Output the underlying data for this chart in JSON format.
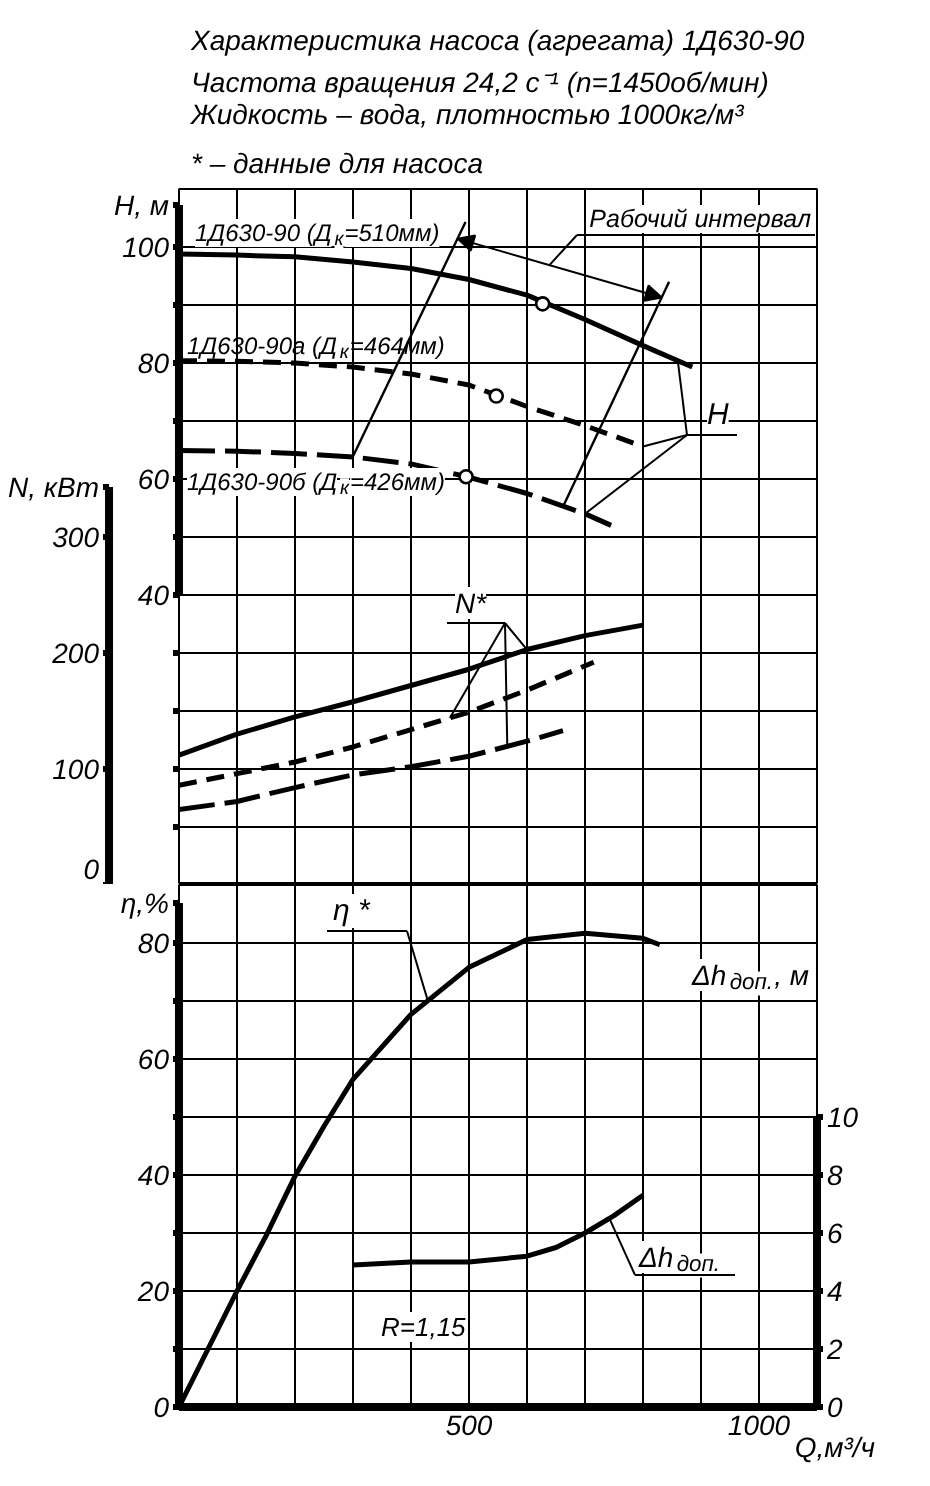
{
  "chart_data": [
    {
      "type": "line",
      "title": "Характеристика насоса (агрегата) 1Д630-90",
      "subtitle": "Частота вращения 24,2 с⁻¹ (n=1450об/мин)\nЖидкость – вода, плотностью 1000кг/м³",
      "annotations": [
        "* – данные для насоса",
        "Рабочий интервал",
        {
          "text": "H",
          "x": 860,
          "y": 80.4
        },
        {
          "text": "N*",
          "x": 600,
          "y": 30.6
        }
      ],
      "ylabel": "H, м",
      "y2label": "N, кВт",
      "xlim": [
        0,
        1100
      ],
      "xticks": [
        {
          "value": 0,
          "label": null
        },
        {
          "value": 100,
          "label": null
        },
        {
          "value": 200,
          "label": null
        },
        {
          "value": 300,
          "label": null
        },
        {
          "value": 400,
          "label": null
        },
        {
          "value": 500,
          "label": null
        },
        {
          "value": 600,
          "label": null
        },
        {
          "value": 700,
          "label": null
        },
        {
          "value": 800,
          "label": null
        },
        {
          "value": 900,
          "label": null
        },
        {
          "value": 1000,
          "label": null
        },
        {
          "value": 1100,
          "label": null
        }
      ],
      "tick_labels": "y",
      "ylim": [
        -10,
        110
      ],
      "yticks": [
        {
          "value": 0,
          "label": null
        },
        {
          "value": 10,
          "label": null
        },
        {
          "value": 20,
          "label": null
        },
        {
          "value": 30,
          "label": null
        },
        40,
        {
          "value": 50,
          "label": null
        },
        60,
        {
          "value": 70,
          "label": null
        },
        80,
        {
          "value": 90,
          "label": null
        },
        100
      ],
      "y2lim": [
        0,
        600
      ],
      "y2ticks": [
        0,
        100,
        200,
        300
      ],
      "grid": true,
      "series": [
        {
          "name": "1Д630-90 (Д$_{к}$=510мм)",
          "color": "#000000",
          "line_style": "solid",
          "x": [
            0,
            100,
            200,
            300,
            400,
            500,
            600,
            700,
            800,
            885
          ],
          "values": [
            98.8,
            98.6,
            98.3,
            97.4,
            96.3,
            94.4,
            91.7,
            87.5,
            83.0,
            79.3
          ]
        },
        {
          "name": "1Д630-90а (Д$_{к}$=464мм)",
          "color": "#000000",
          "line_style": "dashed",
          "x": [
            0,
            100,
            200,
            300,
            400,
            500,
            600,
            700,
            800
          ],
          "values": [
            80.4,
            80.3,
            80.0,
            79.3,
            78.1,
            76.2,
            72.5,
            69.2,
            65.6
          ]
        },
        {
          "name": "1Д630-90б (Д$_{к}$=426мм)",
          "color": "#000000",
          "line_style": "dashed",
          "x": [
            0,
            100,
            200,
            300,
            400,
            500,
            600,
            700,
            745
          ],
          "values": [
            64.9,
            64.8,
            64.4,
            63.8,
            62.6,
            60.3,
            57.5,
            54.0,
            52.0
          ]
        },
        {
          "type": "scatter",
          "color": "#000000",
          "marker": "circle",
          "x": [
            627,
            547,
            495
          ],
          "values": [
            90.2,
            74.3,
            60.4
          ]
        },
        {
          "color": "#000000",
          "line_style": "solid",
          "x": [
            494,
            298
          ],
          "values": [
            104.3,
            63.5
          ]
        },
        {
          "color": "#000000",
          "line_style": "solid",
          "x": [
            845,
            662
          ],
          "values": [
            94.0,
            55.2
          ]
        },
        {
          "color": "#000000",
          "axis": "y2",
          "line_style": "solid",
          "x": [
            0,
            100,
            200,
            300,
            400,
            500,
            600,
            700,
            800
          ],
          "values": [
            112,
            130,
            145,
            158,
            172,
            186,
            203,
            215,
            224
          ]
        },
        {
          "color": "#000000",
          "axis": "y2",
          "line_style": "dashed",
          "x": [
            0,
            100,
            200,
            300,
            400,
            500,
            600,
            715
          ],
          "values": [
            86,
            96,
            106,
            119,
            134,
            149,
            168,
            192
          ]
        },
        {
          "color": "#000000",
          "axis": "y2",
          "line_style": "dashed",
          "x": [
            0,
            100,
            200,
            300,
            400,
            500,
            600,
            662
          ],
          "values": [
            65,
            72,
            84,
            95,
            102,
            111,
            124,
            133
          ]
        }
      ]
    },
    {
      "type": "line",
      "annotations": [
        "R=1,15"
      ],
      "xlabel": "Q,м³/ч",
      "ylabel": "η,%",
      "y2label": "Δh$_{доп.}$, м",
      "xlim": [
        0,
        1100
      ],
      "xticks": [
        {
          "value": 0,
          "label": null
        },
        {
          "value": 100,
          "label": null
        },
        {
          "value": 200,
          "label": null
        },
        {
          "value": 300,
          "label": null
        },
        {
          "value": 400,
          "label": null
        },
        500,
        {
          "value": 600,
          "label": null
        },
        {
          "value": 700,
          "label": null
        },
        {
          "value": 800,
          "label": null
        },
        {
          "value": 900,
          "label": null
        },
        1000,
        {
          "value": 1100,
          "label": null
        }
      ],
      "ylim": [
        0,
        90
      ],
      "yticks": [
        0,
        {
          "value": 10,
          "label": null
        },
        20,
        {
          "value": 30,
          "label": null
        },
        40,
        {
          "value": 50,
          "label": null
        },
        60,
        {
          "value": 70,
          "label": null
        },
        80
      ],
      "y2lim": [
        0,
        18
      ],
      "y2ticks": [
        0,
        2,
        4,
        6,
        8,
        10
      ],
      "grid": true,
      "series": [
        {
          "name": "η *",
          "color": "#000000",
          "line_style": "solid",
          "x": [
            0,
            50,
            100,
            150,
            200,
            250,
            300,
            400,
            500,
            600,
            700,
            800,
            829
          ],
          "values": [
            0,
            10,
            20,
            29.5,
            39.8,
            48.4,
            56.5,
            67.7,
            75.8,
            80.6,
            81.7,
            80.8,
            79.7
          ]
        },
        {
          "name": "Δh$_{доп.}$",
          "color": "#000000",
          "axis": "y2",
          "line_style": "solid",
          "x": [
            300,
            400,
            500,
            600,
            650,
            700,
            750,
            800
          ],
          "values": [
            4.9,
            5.0,
            5.0,
            5.2,
            5.5,
            6.0,
            6.6,
            7.3
          ]
        }
      ]
    }
  ]
}
